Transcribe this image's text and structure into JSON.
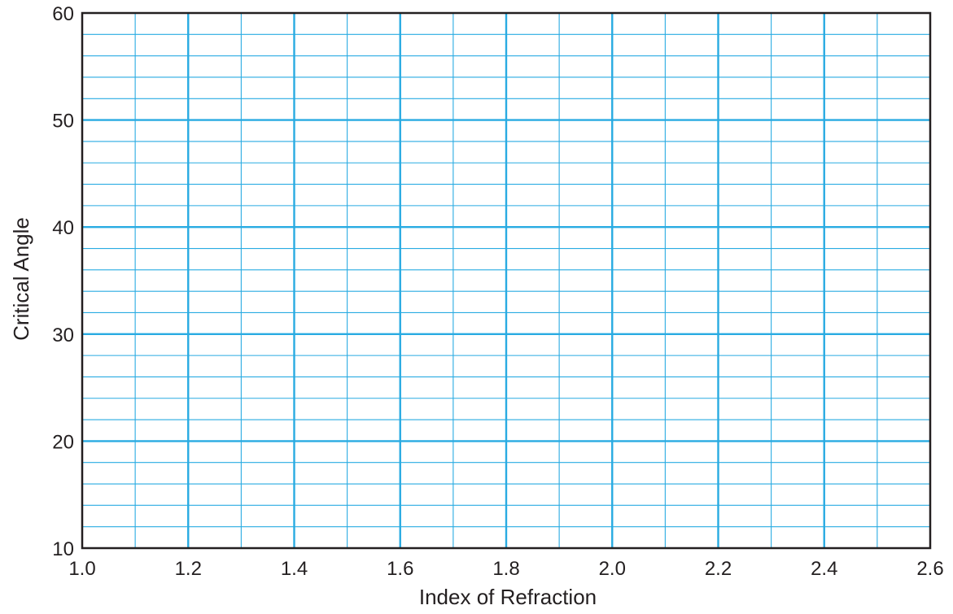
{
  "chart_data": {
    "type": "line",
    "title": "",
    "xlabel": "Index of Refraction",
    "ylabel": "Critical Angle",
    "xlim": [
      1.0,
      2.6
    ],
    "ylim": [
      10,
      60
    ],
    "x_ticks": [
      "1.0",
      "1.2",
      "1.4",
      "1.6",
      "1.8",
      "2.0",
      "2.2",
      "2.4",
      "2.6"
    ],
    "y_ticks": [
      "10",
      "20",
      "30",
      "40",
      "50",
      "60"
    ],
    "x_minor_step": 0.1,
    "y_minor_step": 2,
    "grid": true,
    "series": [],
    "colors": {
      "grid": "#29abe2",
      "frame": "#231f20",
      "text": "#231f20"
    }
  }
}
